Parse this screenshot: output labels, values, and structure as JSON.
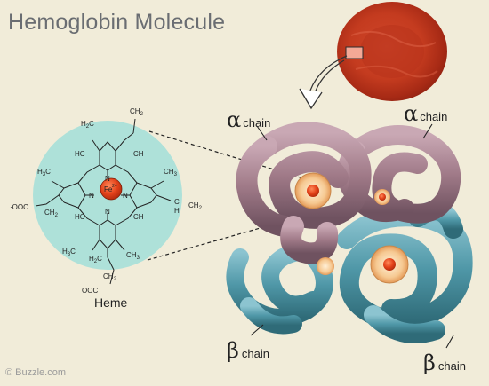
{
  "title": "Hemoglobin Molecule",
  "watermark": "© Buzzle.com",
  "heme": {
    "label": "Heme",
    "iron": "Fe",
    "iron_charge": "2+",
    "nitrogen": "N",
    "groups": {
      "h2c_top": "H",
      "h2c_top_sub": "2",
      "h2c_top_c": "C",
      "ch2_top": "CH",
      "ch2_top_sub": "2",
      "ch3_upper_left": "H",
      "ch3_upper_left_sub": "3",
      "ch3_upper_left_c": "C",
      "ch3_upper_right": "CH",
      "ch3_upper_right_sub": "3",
      "hc_left_top": "HC",
      "ch_right_top": "CH",
      "hc_left_bottom": "HC",
      "ch_right_bottom": "CH",
      "ch_vinyl": "C",
      "ch_vinyl_h": "H",
      "ch2_vinyl": "CH",
      "ch2_vinyl_sub": "2",
      "ch3_lower_right": "CH",
      "ch3_lower_right_sub": "3",
      "ch2_left": "CH",
      "ch2_left_sub": "2",
      "ooc_left": "·OOC",
      "h2c_bottom": "H",
      "h2c_bottom_sub": "2",
      "h2c_bottom_c": "C",
      "ch2_bottom": "CH",
      "ch2_bottom_sub": "2",
      "ooc_bottom": "OOC",
      "ch3_left": "H",
      "ch3_left_sub": "3",
      "ch3_left_c": "C"
    }
  },
  "chains": {
    "alpha_left": {
      "symbol": "α",
      "word": "chain"
    },
    "alpha_right": {
      "symbol": "α",
      "word": "chain"
    },
    "beta_left": {
      "symbol": "β",
      "word": "chain"
    },
    "beta_right": {
      "symbol": "β",
      "word": "chain"
    }
  },
  "colors": {
    "background": "#f1ecd9",
    "alpha_chain": "#a07a88",
    "beta_chain": "#4f97a7",
    "heme_disc": "#f0bf86",
    "iron_core": "#e64a1f",
    "red_blood_cell": "#c83a20",
    "heme_circle": "#aee1d9"
  }
}
